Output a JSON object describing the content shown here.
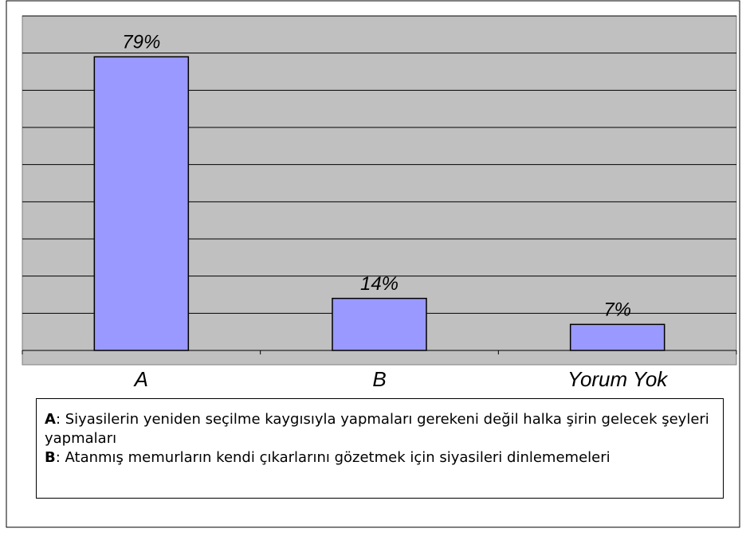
{
  "chart_data": {
    "type": "bar",
    "categories": [
      "A",
      "B",
      "Yorum Yok"
    ],
    "values": [
      79,
      14,
      7
    ],
    "value_labels": [
      "79%",
      "14%",
      "7%"
    ],
    "color": "#9999ff",
    "ylim": [
      0,
      90
    ],
    "yticks": [
      0,
      10,
      20,
      30,
      40,
      50,
      60,
      70,
      80,
      90
    ],
    "grid": true,
    "notes": [
      {
        "key": "A",
        "text": ": Siyasilerin yeniden seçilme kaygısıyla yapmaları gerekeni değil halka şirin gelecek şeyleri yapmaları"
      },
      {
        "key": "B",
        "text": ": Atanmış memurların kendi çıkarlarını gözetmek için siyasileri dinlememeleri"
      }
    ]
  }
}
